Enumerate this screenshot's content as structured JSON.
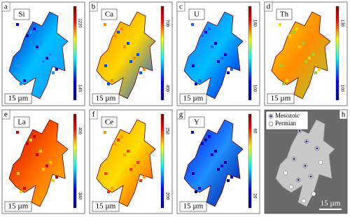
{
  "panels": [
    {
      "letter": "a",
      "element": "Si",
      "colorbar": [
        1220,
        140
      ],
      "scale": "15 µm"
    },
    {
      "letter": "b",
      "element": "Ca",
      "colorbar": [
        700,
        400
      ],
      "scale": "15 µm"
    },
    {
      "letter": "c",
      "element": "U",
      "colorbar": [
        180,
        100
      ],
      "scale": "15 µm"
    },
    {
      "letter": "d",
      "element": "Th",
      "colorbar": [
        130,
        100
      ],
      "scale": "15 µm"
    },
    {
      "letter": "e",
      "element": "La",
      "colorbar": [
        400,
        340
      ],
      "scale": "15 µm"
    },
    {
      "letter": "f",
      "element": "Ce",
      "colorbar": [
        250,
        200
      ],
      "scale": "15 µm"
    },
    {
      "letter": "g",
      "element": "Y",
      "colorbar": [
        60,
        20
      ],
      "scale": "15 µm"
    }
  ],
  "bse": {
    "letter": "h",
    "legend": [
      "Mesozoic",
      "Permian"
    ],
    "scale": "15 µm"
  }
}
